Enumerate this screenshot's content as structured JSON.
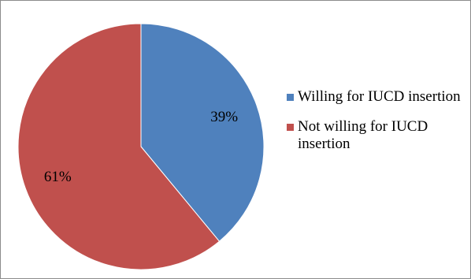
{
  "chart_data": {
    "type": "pie",
    "categories": [
      "Willing for IUCD insertion",
      "Not willing for IUCD insertion"
    ],
    "values": [
      39,
      61
    ],
    "data_labels": [
      "39%",
      "61%"
    ],
    "colors": [
      "#4f81bd",
      "#c0504d"
    ],
    "legend_position": "right"
  }
}
